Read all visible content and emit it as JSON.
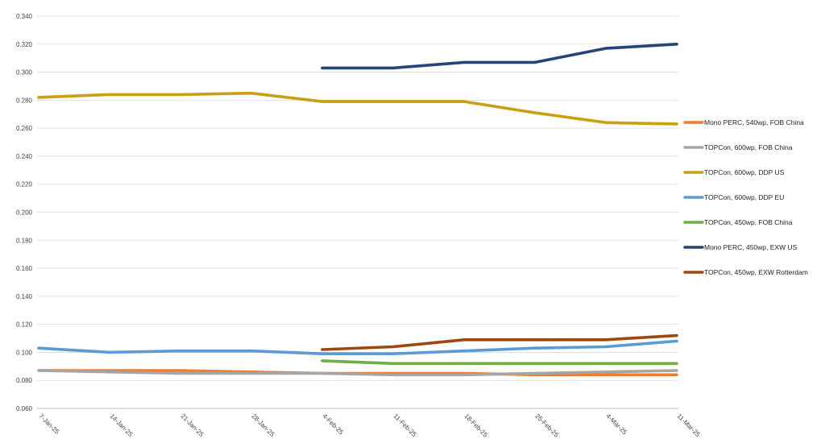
{
  "chart_data": {
    "type": "line",
    "title": "",
    "xlabel": "",
    "ylabel": "",
    "ylim": [
      0.06,
      0.34
    ],
    "yticks": [
      0.06,
      0.08,
      0.1,
      0.12,
      0.14,
      0.16,
      0.18,
      0.2,
      0.22,
      0.24,
      0.26,
      0.28,
      0.3,
      0.32,
      0.34
    ],
    "ytick_labels": [
      "0.060",
      "0.080",
      "0.100",
      "0.120",
      "0.140",
      "0.160",
      "0.180",
      "0.200",
      "0.220",
      "0.240",
      "0.260",
      "0.280",
      "0.300",
      "0.320",
      "0.340"
    ],
    "categories": [
      "7-Jan-25",
      "14-Jan-25",
      "21-Jan-25",
      "28-Jan-25",
      "4-Feb-25",
      "11-Feb-25",
      "18-Feb-25",
      "25-Feb-25",
      "4-Mar-25",
      "11-Mar-25"
    ],
    "grid": true,
    "legend_position": "right",
    "series": [
      {
        "name": "Mono PERC, 540wp, FOB China",
        "color": "#ED7D31",
        "values": [
          0.087,
          0.087,
          0.087,
          0.086,
          0.085,
          0.085,
          0.085,
          0.084,
          0.084,
          0.084
        ]
      },
      {
        "name": "TOPCon, 600wp, FOB China",
        "color": "#A5A5A5",
        "values": [
          0.087,
          0.086,
          0.085,
          0.085,
          0.085,
          0.084,
          0.084,
          0.085,
          0.086,
          0.087
        ]
      },
      {
        "name": "TOPCon, 600wp, DDP US",
        "color": "#C9A00F",
        "values": [
          0.282,
          0.284,
          0.284,
          0.285,
          0.279,
          0.279,
          0.279,
          0.271,
          0.264,
          0.263
        ]
      },
      {
        "name": "TOPCon, 600wp, DDP EU",
        "color": "#5B9BD5",
        "values": [
          0.103,
          0.1,
          0.101,
          0.101,
          0.099,
          0.099,
          0.101,
          0.103,
          0.104,
          0.108
        ]
      },
      {
        "name": "TOPCon, 450wp, FOB China",
        "color": "#70AD47",
        "values": [
          null,
          null,
          null,
          null,
          0.094,
          0.092,
          0.092,
          0.092,
          0.092,
          0.092
        ]
      },
      {
        "name": "Mono PERC, 450wp, EXW US",
        "color": "#264478",
        "values": [
          null,
          null,
          null,
          null,
          0.303,
          0.303,
          0.307,
          0.307,
          0.317,
          0.32
        ]
      },
      {
        "name": "TOPCon, 450wp, EXW Rotterdam",
        "color": "#9E480E",
        "values": [
          null,
          null,
          null,
          null,
          0.102,
          0.104,
          0.109,
          0.109,
          0.109,
          0.112
        ]
      }
    ]
  }
}
